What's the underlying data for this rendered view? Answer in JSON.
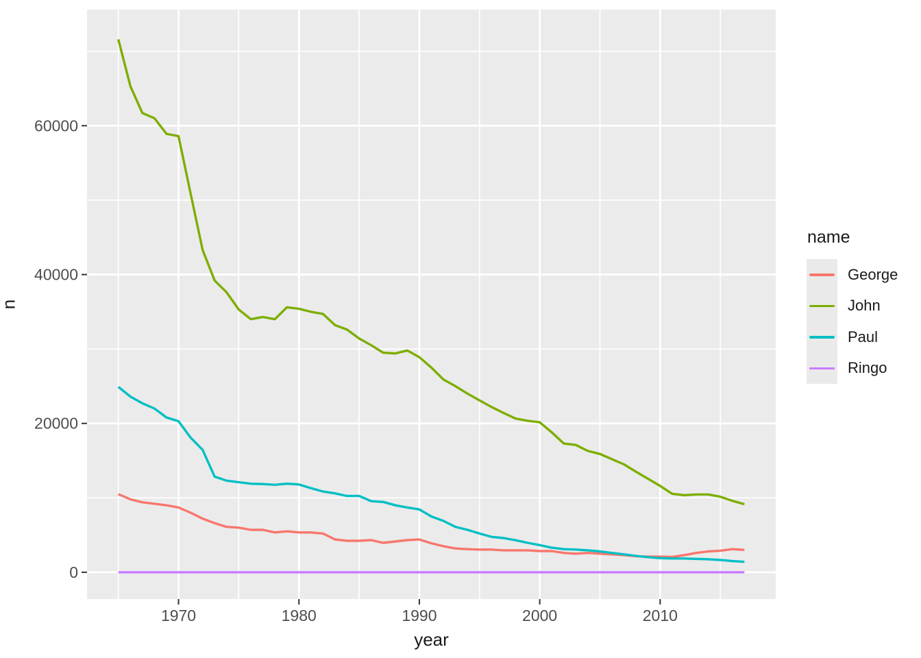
{
  "legend": {
    "title": "name"
  },
  "chart_data": {
    "type": "line",
    "title": "",
    "xlabel": "year",
    "ylabel": "n",
    "grid": true,
    "legend_position": "right",
    "colors": {
      "panel_bg": "#EBEBEB",
      "gridline": "#FFFFFF",
      "tick_mark": "#333333",
      "tick_label": "#4D4D4D",
      "axis_title": "#1A1A1A",
      "legend_key_bg": "#EAEAEA"
    },
    "xlim": [
      1962.4,
      2019.6
    ],
    "ylim": [
      -3600,
      75600
    ],
    "x_major_ticks": [
      1970,
      1980,
      1990,
      2000,
      2010
    ],
    "x_minor_ticks": [
      1965,
      1975,
      1985,
      1995,
      2005,
      2015
    ],
    "y_major_ticks": [
      0,
      20000,
      40000,
      60000
    ],
    "y_minor_ticks": [
      10000,
      30000,
      50000,
      70000
    ],
    "x": [
      1965,
      1966,
      1967,
      1968,
      1969,
      1970,
      1971,
      1972,
      1973,
      1974,
      1975,
      1976,
      1977,
      1978,
      1979,
      1980,
      1981,
      1982,
      1983,
      1984,
      1985,
      1986,
      1987,
      1988,
      1989,
      1990,
      1991,
      1992,
      1993,
      1994,
      1995,
      1996,
      1997,
      1998,
      1999,
      2000,
      2001,
      2002,
      2003,
      2004,
      2005,
      2006,
      2007,
      2008,
      2009,
      2010,
      2011,
      2012,
      2013,
      2014,
      2015,
      2016,
      2017
    ],
    "series": [
      {
        "name": "George",
        "color": "#F8766D",
        "values": [
          10500,
          9800,
          9400,
          9200,
          9000,
          8700,
          8000,
          7200,
          6600,
          6100,
          6000,
          5700,
          5700,
          5350,
          5500,
          5350,
          5350,
          5200,
          4400,
          4230,
          4230,
          4320,
          3950,
          4140,
          4320,
          4400,
          3900,
          3500,
          3200,
          3100,
          3050,
          3050,
          2950,
          2950,
          2950,
          2850,
          2850,
          2600,
          2500,
          2600,
          2500,
          2400,
          2300,
          2150,
          2100,
          2100,
          2050,
          2300,
          2600,
          2800,
          2900,
          3100,
          3000
        ]
      },
      {
        "name": "John",
        "color": "#7CAE00",
        "values": [
          71600,
          65300,
          61700,
          61000,
          58900,
          58600,
          50900,
          43300,
          39200,
          37600,
          35300,
          34000,
          34300,
          34000,
          35600,
          35400,
          35000,
          34700,
          33200,
          32600,
          31400,
          30500,
          29500,
          29400,
          29800,
          28900,
          27500,
          25900,
          25000,
          24000,
          23100,
          22200,
          21400,
          20650,
          20350,
          20150,
          18800,
          17300,
          17100,
          16300,
          15900,
          15200,
          14500,
          13500,
          12550,
          11600,
          10550,
          10350,
          10450,
          10450,
          10150,
          9600,
          9150
        ]
      },
      {
        "name": "Paul",
        "color": "#00BFC4",
        "values": [
          24900,
          23600,
          22700,
          22000,
          20800,
          20300,
          18100,
          16450,
          12850,
          12300,
          12100,
          11900,
          11850,
          11750,
          11900,
          11800,
          11300,
          10850,
          10600,
          10250,
          10250,
          9550,
          9450,
          9000,
          8700,
          8450,
          7500,
          6900,
          6100,
          5700,
          5200,
          4750,
          4600,
          4300,
          3950,
          3650,
          3300,
          3100,
          3050,
          2950,
          2800,
          2600,
          2400,
          2200,
          2030,
          1900,
          1850,
          1850,
          1800,
          1750,
          1650,
          1500,
          1400
        ]
      },
      {
        "name": "Ringo",
        "color": "#C77CFF",
        "values": [
          0,
          0,
          0,
          0,
          0,
          0,
          0,
          0,
          0,
          0,
          0,
          0,
          0,
          0,
          0,
          0,
          0,
          0,
          0,
          0,
          0,
          0,
          0,
          0,
          0,
          0,
          0,
          0,
          0,
          0,
          0,
          0,
          0,
          0,
          0,
          0,
          0,
          0,
          0,
          0,
          0,
          0,
          0,
          0,
          0,
          0,
          0,
          0,
          0,
          0,
          0,
          0,
          0
        ]
      }
    ]
  }
}
